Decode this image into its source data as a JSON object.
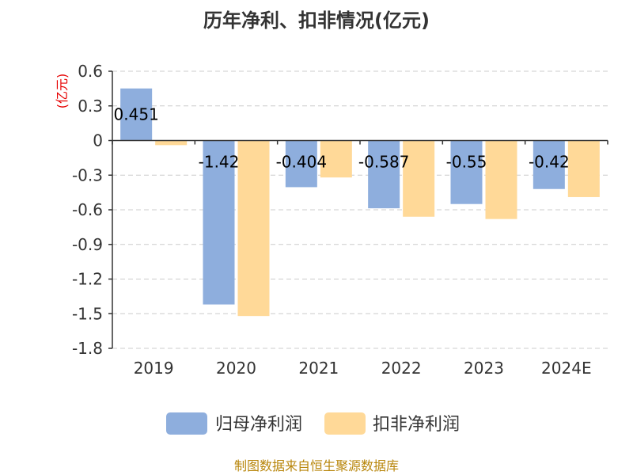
{
  "chart_data": {
    "type": "bar",
    "title": "历年净利、扣非情况(亿元)",
    "ylabel": "(亿元)",
    "categories": [
      "2019",
      "2020",
      "2021",
      "2022",
      "2023",
      "2024E"
    ],
    "ylim": [
      -1.8,
      0.6
    ],
    "yticks": [
      "0.6",
      "0.3",
      "0",
      "-0.3",
      "-0.6",
      "-0.9",
      "-1.2",
      "-1.5",
      "-1.8"
    ],
    "grid": true,
    "legend_position": "bottom",
    "series": [
      {
        "name": "归母净利润",
        "color": "#8eaedd",
        "values": [
          0.451,
          -1.42,
          -0.404,
          -0.587,
          -0.55,
          -0.42
        ],
        "labels": [
          "0.451",
          "-1.42",
          "-0.404",
          "-0.587",
          "-0.55",
          "-0.42"
        ]
      },
      {
        "name": "扣非净利润",
        "color": "#ffd998",
        "values": [
          -0.04,
          -1.52,
          -0.32,
          -0.66,
          -0.68,
          -0.49
        ]
      }
    ]
  },
  "footer": "制图数据来自恒生聚源数据库"
}
